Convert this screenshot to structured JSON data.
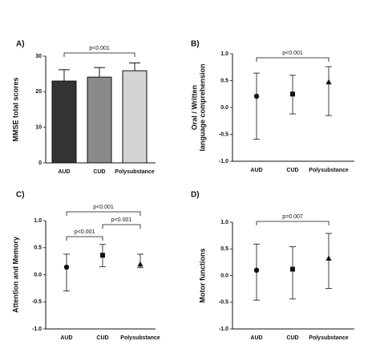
{
  "chart_data": [
    {
      "type": "bar",
      "label": "A)",
      "ylabel": [
        "MMSE total scores"
      ],
      "categories": [
        "AUD",
        "CUD",
        "Polysubstance"
      ],
      "values": [
        23.0,
        24.1,
        25.9
      ],
      "errors": [
        3.2,
        2.7,
        2.2
      ],
      "colors": [
        "#333333",
        "#8a8a8a",
        "#d4d4d4"
      ],
      "ylim": [
        0,
        30
      ],
      "yticks": [
        0,
        10,
        20,
        30
      ],
      "annotations": [
        {
          "text": "p<0.001",
          "from": 0,
          "to": 2
        }
      ]
    },
    {
      "type": "scatter",
      "label": "B)",
      "ylabel": [
        "Oral / Written",
        "language comprehension"
      ],
      "categories": [
        "AUD",
        "CUD",
        "Polysubstance"
      ],
      "values": [
        0.21,
        0.25,
        0.47
      ],
      "lower": [
        -0.59,
        -0.12,
        -0.15
      ],
      "upper": [
        0.64,
        0.6,
        0.76
      ],
      "markers": [
        "circle",
        "square",
        "triangle"
      ],
      "color": "#111111",
      "ylim": [
        -1,
        1
      ],
      "yticks": [
        {
          "value": -1,
          "label": "-1.0"
        },
        -0.5,
        {
          "value": 0,
          "label": "0.0"
        },
        0.5,
        {
          "value": 1,
          "label": "1.0"
        }
      ],
      "annotations": [
        {
          "text": "p<0.001",
          "from": 0,
          "to": 2
        }
      ]
    },
    {
      "type": "scatter",
      "label": "C)",
      "ylabel": [
        "Attention and  Memory"
      ],
      "categories": [
        "AUD",
        "CUD",
        "Polysubstance"
      ],
      "values": [
        0.14,
        0.36,
        0.19
      ],
      "lower": [
        -0.3,
        0.15,
        0.13
      ],
      "upper": [
        0.38,
        0.56,
        0.38
      ],
      "markers": [
        "circle",
        "square",
        "triangle"
      ],
      "color": "#111111",
      "ylim": [
        -1,
        1
      ],
      "yticks": [
        {
          "value": -1,
          "label": "-1.0"
        },
        -0.5,
        {
          "value": 0,
          "label": "0.0"
        },
        0.5,
        {
          "value": 1,
          "label": "1.0"
        }
      ],
      "annotations": [
        {
          "text": "p<0.001",
          "from": 0,
          "to": 1
        },
        {
          "text": "p<0.001",
          "from": 1,
          "to": 2
        },
        {
          "text": "p<0.001",
          "from": 0,
          "to": 2
        }
      ]
    },
    {
      "type": "scatter",
      "label": "D)",
      "ylabel": [
        "Motor functions"
      ],
      "categories": [
        "AUD",
        "CUD",
        "Polysubstance"
      ],
      "values": [
        0.1,
        0.12,
        0.32
      ],
      "lower": [
        -0.46,
        -0.44,
        -0.24
      ],
      "upper": [
        0.59,
        0.54,
        0.79
      ],
      "markers": [
        "circle",
        "square",
        "triangle"
      ],
      "color": "#111111",
      "ylim": [
        -1,
        1
      ],
      "yticks": [
        {
          "value": -1,
          "label": "-1.0"
        },
        -0.5,
        {
          "value": 0,
          "label": "0.0"
        },
        0.5,
        {
          "value": 1,
          "label": "1.0"
        }
      ],
      "annotations": [
        {
          "text": "p=0.007",
          "from": 0,
          "to": 2
        }
      ]
    }
  ]
}
